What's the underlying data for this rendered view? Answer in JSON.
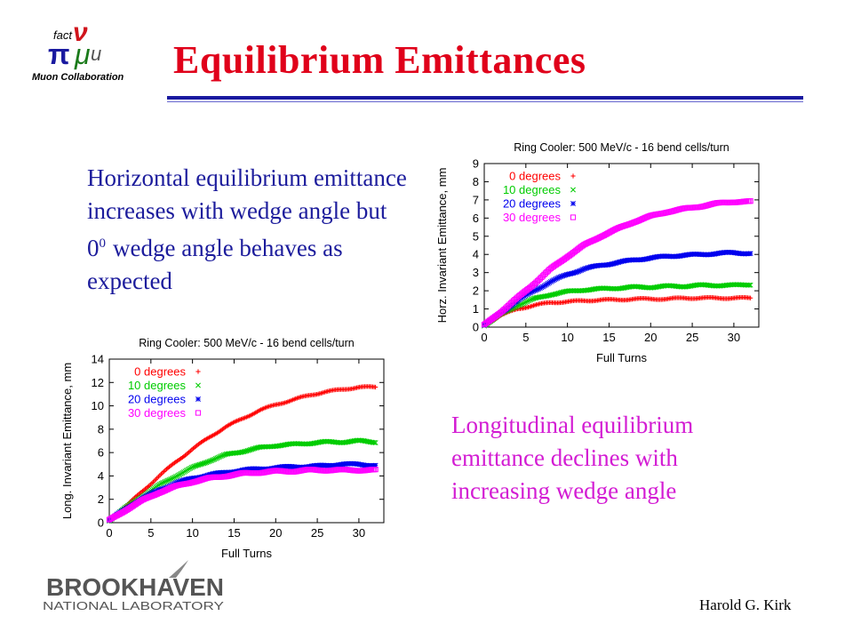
{
  "logo": {
    "top_text": "fact",
    "caption": "Muon Collaboration"
  },
  "slide": {
    "title": "Equilibrium Emittances",
    "horizontal_note": {
      "before": "Horizontal equilibrium emittance increases with wedge angle but 0",
      "sup": "0",
      "after": "wedge angle behaves as expected"
    },
    "longitudinal_note": "Longitudinal equilibrium emittance declines with increasing wedge angle"
  },
  "footer": {
    "lab_name": "BROOKHAVEN",
    "lab_subtitle": "NATIONAL LABORATORY",
    "author": "Harold G. Kirk"
  },
  "chart_data": [
    {
      "type": "scatter",
      "title": "Ring Cooler: 500 MeV/c - 16 bend cells/turn",
      "xlabel": "Full Turns",
      "ylabel": "Horz. Invariant Emittance, mm",
      "xlim": [
        0,
        33
      ],
      "ylim": [
        0,
        9
      ],
      "xticks": [
        0,
        5,
        10,
        15,
        20,
        25,
        30
      ],
      "yticks": [
        0,
        1,
        2,
        3,
        4,
        5,
        6,
        7,
        8,
        9
      ],
      "legend_position": "top-left",
      "grid": false,
      "series": [
        {
          "name": "0 degrees",
          "color": "#ff0000",
          "marker": "+",
          "x": [
            0,
            2,
            4,
            6,
            8,
            10,
            12,
            14,
            16,
            18,
            20,
            22,
            24,
            26,
            28,
            30,
            32
          ],
          "y": [
            0.1,
            0.65,
            1.0,
            1.2,
            1.35,
            1.4,
            1.45,
            1.5,
            1.5,
            1.55,
            1.55,
            1.55,
            1.6,
            1.6,
            1.6,
            1.6,
            1.6
          ]
        },
        {
          "name": "10 degrees",
          "color": "#00cc00",
          "marker": "x",
          "x": [
            0,
            2,
            4,
            6,
            8,
            10,
            12,
            14,
            16,
            18,
            20,
            22,
            24,
            26,
            28,
            30,
            32
          ],
          "y": [
            0.1,
            0.7,
            1.2,
            1.55,
            1.8,
            1.95,
            2.05,
            2.1,
            2.15,
            2.2,
            2.2,
            2.25,
            2.25,
            2.3,
            2.3,
            2.3,
            2.35
          ]
        },
        {
          "name": "20 degrees",
          "color": "#0000ee",
          "marker": "*",
          "x": [
            0,
            2,
            4,
            6,
            8,
            10,
            12,
            14,
            16,
            18,
            20,
            22,
            24,
            26,
            28,
            30,
            32
          ],
          "y": [
            0.1,
            0.8,
            1.45,
            2.0,
            2.5,
            2.9,
            3.2,
            3.4,
            3.55,
            3.7,
            3.8,
            3.9,
            3.95,
            4.0,
            4.05,
            4.1,
            4.05
          ]
        },
        {
          "name": "30 degrees",
          "color": "#ff00ff",
          "marker": "square",
          "x": [
            0,
            2,
            4,
            6,
            8,
            10,
            12,
            14,
            16,
            18,
            20,
            22,
            24,
            26,
            28,
            30,
            32
          ],
          "y": [
            0.1,
            0.85,
            1.6,
            2.4,
            3.2,
            3.9,
            4.5,
            5.0,
            5.4,
            5.8,
            6.1,
            6.35,
            6.5,
            6.65,
            6.8,
            6.9,
            6.9
          ]
        }
      ]
    },
    {
      "type": "scatter",
      "title": "Ring Cooler: 500 MeV/c - 16 bend cells/turn",
      "xlabel": "Full Turns",
      "ylabel": "Long. Invariant Emittance, mm",
      "xlim": [
        0,
        33
      ],
      "ylim": [
        0,
        14
      ],
      "xticks": [
        0,
        5,
        10,
        15,
        20,
        25,
        30
      ],
      "yticks": [
        0,
        2,
        4,
        6,
        8,
        10,
        12,
        14
      ],
      "legend_position": "top-left",
      "grid": false,
      "series": [
        {
          "name": "0 degrees",
          "color": "#ff0000",
          "marker": "+",
          "x": [
            0,
            2,
            4,
            6,
            8,
            10,
            12,
            14,
            16,
            18,
            20,
            22,
            24,
            26,
            28,
            30,
            32
          ],
          "y": [
            0.2,
            1.4,
            2.7,
            4.0,
            5.2,
            6.3,
            7.3,
            8.2,
            8.9,
            9.6,
            10.1,
            10.5,
            10.9,
            11.2,
            11.4,
            11.6,
            11.6
          ]
        },
        {
          "name": "10 degrees",
          "color": "#00cc00",
          "marker": "x",
          "x": [
            0,
            2,
            4,
            6,
            8,
            10,
            12,
            14,
            16,
            18,
            20,
            22,
            24,
            26,
            28,
            30,
            32
          ],
          "y": [
            0.2,
            1.3,
            2.3,
            3.2,
            4.0,
            4.7,
            5.3,
            5.8,
            6.1,
            6.4,
            6.6,
            6.7,
            6.8,
            6.9,
            6.9,
            7.0,
            6.9
          ]
        },
        {
          "name": "20 degrees",
          "color": "#0000ee",
          "marker": "*",
          "x": [
            0,
            2,
            4,
            6,
            8,
            10,
            12,
            14,
            16,
            18,
            20,
            22,
            24,
            26,
            28,
            30,
            32
          ],
          "y": [
            0.2,
            1.2,
            2.1,
            2.8,
            3.4,
            3.8,
            4.1,
            4.3,
            4.5,
            4.6,
            4.7,
            4.8,
            4.8,
            4.9,
            5.0,
            5.0,
            4.9
          ]
        },
        {
          "name": "30 degrees",
          "color": "#ff00ff",
          "marker": "square",
          "x": [
            0,
            2,
            4,
            6,
            8,
            10,
            12,
            14,
            16,
            18,
            20,
            22,
            24,
            26,
            28,
            30,
            32
          ],
          "y": [
            0.2,
            1.1,
            1.9,
            2.6,
            3.1,
            3.5,
            3.8,
            4.0,
            4.2,
            4.3,
            4.4,
            4.4,
            4.5,
            4.5,
            4.5,
            4.5,
            4.5
          ]
        }
      ]
    }
  ]
}
